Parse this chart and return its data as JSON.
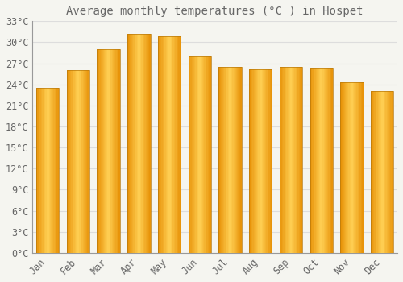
{
  "title": "Average monthly temperatures (°C ) in Hospet",
  "months": [
    "Jan",
    "Feb",
    "Mar",
    "Apr",
    "May",
    "Jun",
    "Jul",
    "Aug",
    "Sep",
    "Oct",
    "Nov",
    "Dec"
  ],
  "temperatures": [
    23.5,
    26.0,
    29.0,
    31.2,
    30.8,
    28.0,
    26.5,
    26.2,
    26.5,
    26.3,
    24.3,
    23.0
  ],
  "bar_color_left": "#F5A800",
  "bar_color_center": "#FFD966",
  "bar_color_right": "#E8940A",
  "background_color": "#F5F5F0",
  "plot_bg_color": "#F5F5F0",
  "grid_color": "#DDDDDD",
  "text_color": "#666666",
  "border_color": "#999999",
  "ylim": [
    0,
    33
  ],
  "yticks": [
    0,
    3,
    6,
    9,
    12,
    15,
    18,
    21,
    24,
    27,
    30,
    33
  ],
  "title_fontsize": 10,
  "tick_fontsize": 8.5
}
